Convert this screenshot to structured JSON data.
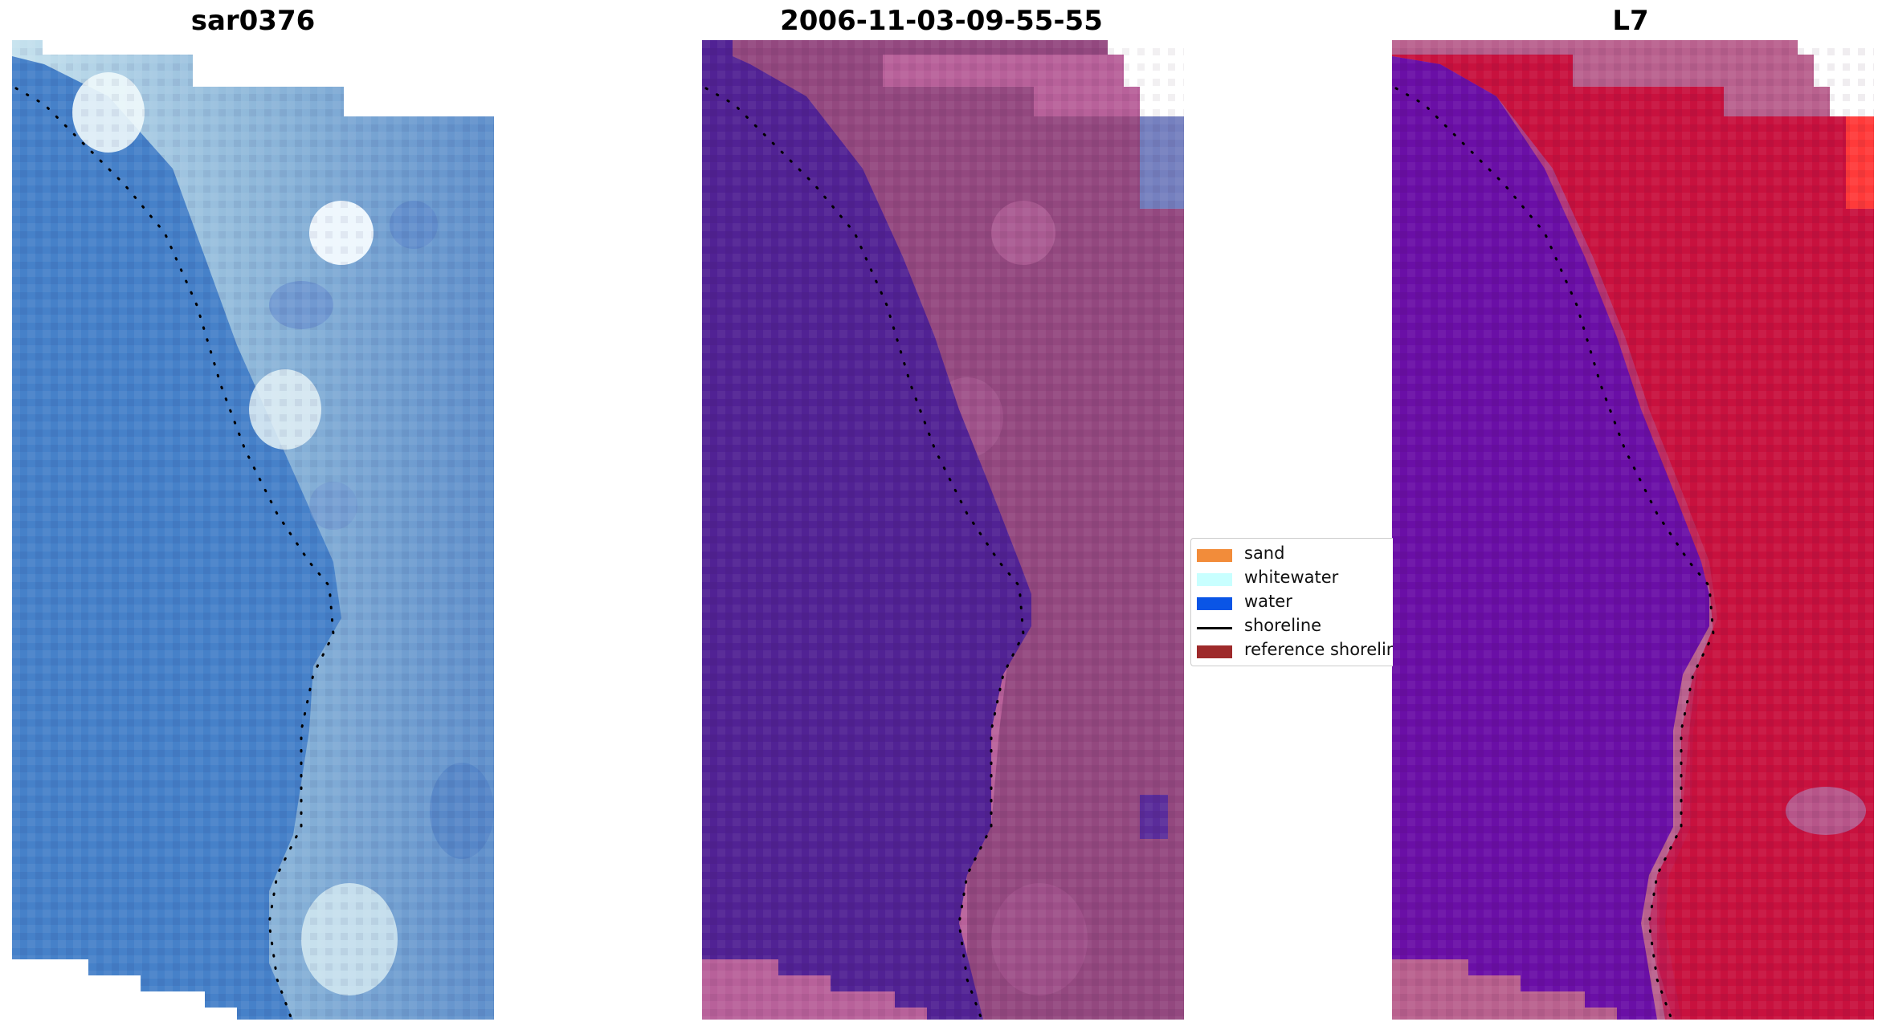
{
  "panels": [
    {
      "id": "rgb",
      "title": "sar0376"
    },
    {
      "id": "classified",
      "title": "2006-11-03-09-55-55"
    },
    {
      "id": "index",
      "title": "L7"
    }
  ],
  "legend": {
    "items": [
      {
        "label": "sand",
        "kind": "patch",
        "color": "#f28c3a"
      },
      {
        "label": "whitewater",
        "kind": "patch",
        "color": "#c8ffff"
      },
      {
        "label": "water",
        "kind": "patch",
        "color": "#0a55e6"
      },
      {
        "label": "shoreline",
        "kind": "line",
        "color": "#000000"
      },
      {
        "label": "reference shoreline",
        "kind": "patch",
        "color": "#9e2a2b"
      }
    ]
  },
  "colors": {
    "rgb_water": "#4a7fcb",
    "rgb_whitewater": "#c9e3ef",
    "class_water": "#512294",
    "class_land": "#93487f",
    "class_pink": "#b8619a",
    "index_water": "#6a0fa6",
    "index_land": "#c8113e",
    "index_pink": "#b9618e",
    "shoreline_dots": "#000000"
  }
}
